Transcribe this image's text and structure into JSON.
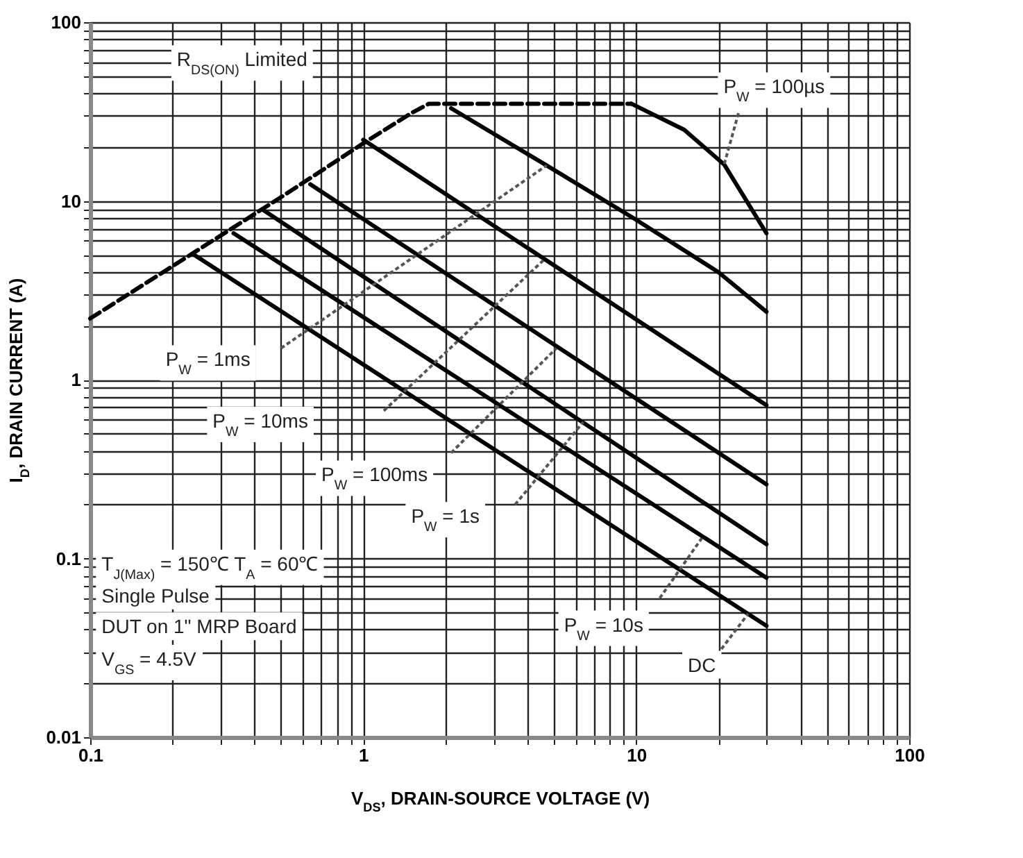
{
  "chart_data": {
    "type": "line",
    "log": "xy",
    "grid": true,
    "xlabel": "V$_{DS}$, DRAIN-SOURCE VOLTAGE (V)",
    "ylabel": "I$_{D}$, DRAIN CURRENT (A)",
    "xlim": [
      0.1,
      100
    ],
    "ylim": [
      0.01,
      100
    ],
    "xticks": [
      0.1,
      {
        "value": 0.2,
        "label": null
      },
      {
        "value": 0.3,
        "label": null
      },
      {
        "value": 0.4,
        "label": null
      },
      {
        "value": 0.5,
        "label": null
      },
      {
        "value": 0.6,
        "label": null
      },
      {
        "value": 0.7,
        "label": null
      },
      {
        "value": 0.8,
        "label": null
      },
      {
        "value": 0.9,
        "label": null
      },
      1,
      {
        "value": 2,
        "label": null
      },
      {
        "value": 3,
        "label": null
      },
      {
        "value": 4,
        "label": null
      },
      {
        "value": 5,
        "label": null
      },
      {
        "value": 6,
        "label": null
      },
      {
        "value": 7,
        "label": null
      },
      {
        "value": 8,
        "label": null
      },
      {
        "value": 9,
        "label": null
      },
      10,
      {
        "value": 20,
        "label": null
      },
      {
        "value": 30,
        "label": null
      },
      {
        "value": 40,
        "label": null
      },
      {
        "value": 50,
        "label": null
      },
      {
        "value": 60,
        "label": null
      },
      {
        "value": 70,
        "label": null
      },
      {
        "value": 80,
        "label": null
      },
      {
        "value": 90,
        "label": null
      },
      100
    ],
    "yticks": [
      0.01,
      {
        "value": 0.02,
        "label": null
      },
      {
        "value": 0.03,
        "label": null
      },
      {
        "value": 0.04,
        "label": null
      },
      {
        "value": 0.05,
        "label": null
      },
      {
        "value": 0.06,
        "label": null
      },
      {
        "value": 0.07,
        "label": null
      },
      {
        "value": 0.08,
        "label": null
      },
      {
        "value": 0.09,
        "label": null
      },
      0.1,
      {
        "value": 0.2,
        "label": null
      },
      {
        "value": 0.3,
        "label": null
      },
      {
        "value": 0.4,
        "label": null
      },
      {
        "value": 0.5,
        "label": null
      },
      {
        "value": 0.6,
        "label": null
      },
      {
        "value": 0.7,
        "label": null
      },
      {
        "value": 0.8,
        "label": null
      },
      {
        "value": 0.9,
        "label": null
      },
      1,
      {
        "value": 2,
        "label": null
      },
      {
        "value": 3,
        "label": null
      },
      {
        "value": 4,
        "label": null
      },
      {
        "value": 5,
        "label": null
      },
      {
        "value": 6,
        "label": null
      },
      {
        "value": 7,
        "label": null
      },
      {
        "value": 8,
        "label": null
      },
      {
        "value": 9,
        "label": null
      },
      10,
      {
        "value": 20,
        "label": null
      },
      {
        "value": 30,
        "label": null
      },
      {
        "value": 40,
        "label": null
      },
      {
        "value": 50,
        "label": null
      },
      {
        "value": 60,
        "label": null
      },
      {
        "value": 70,
        "label": null
      },
      {
        "value": 80,
        "label": null
      },
      {
        "value": 90,
        "label": null
      },
      100
    ],
    "series": [
      {
        "color": "#000000",
        "line_style": "dashed",
        "x": [
          0.1,
          0.5,
          1.0,
          1.5,
          1.74,
          9.6
        ],
        "values": [
          2.2,
          10.5,
          21,
          31,
          35,
          35
        ]
      },
      {
        "color": "#000000",
        "line_style": "solid",
        "x": [
          9.6,
          15,
          21,
          30
        ],
        "values": [
          35,
          25,
          16,
          6.6
        ]
      },
      {
        "color": "#000000",
        "line_style": "solid",
        "x": [
          2.1,
          4.7,
          9.8,
          20,
          30
        ],
        "values": [
          33,
          15.8,
          8,
          4,
          2.4
        ]
      },
      {
        "color": "#000000",
        "line_style": "solid",
        "x": [
          1.0,
          30
        ],
        "values": [
          22,
          0.72
        ]
      },
      {
        "color": "#000000",
        "line_style": "solid",
        "x": [
          0.64,
          30
        ],
        "values": [
          12.4,
          0.26
        ]
      },
      {
        "color": "#000000",
        "line_style": "solid",
        "x": [
          0.43,
          30
        ],
        "values": [
          8.9,
          0.12
        ]
      },
      {
        "color": "#000000",
        "line_style": "solid",
        "x": [
          0.335,
          30
        ],
        "values": [
          6.6,
          0.078
        ]
      },
      {
        "color": "#000000",
        "line_style": "solid",
        "x": [
          0.24,
          30
        ],
        "values": [
          5.0,
          0.042
        ]
      }
    ],
    "annotations": [
      "R$_{DS(ON)}$ Limited",
      {
        "text": "P$_{W}$ = 100µs",
        "x": 21,
        "y": 16
      },
      "P$_{W}$ = 1ms",
      "P$_{W}$ = 10ms",
      "P$_{W}$ = 100ms",
      "P$_{W}$ = 1s",
      {
        "text": "P$_{W}$ = 10s",
        "x": 17.4,
        "y": 0.13
      },
      {
        "text": "DC",
        "x": 25.7,
        "y": 0.049
      },
      "T$_{J(Max)}$ = 150℃  T$_{A}$ = 60℃",
      "Single Pulse",
      "DUT on 1\" MRP Board",
      "V$_{GS}$ = 4.5V"
    ]
  }
}
